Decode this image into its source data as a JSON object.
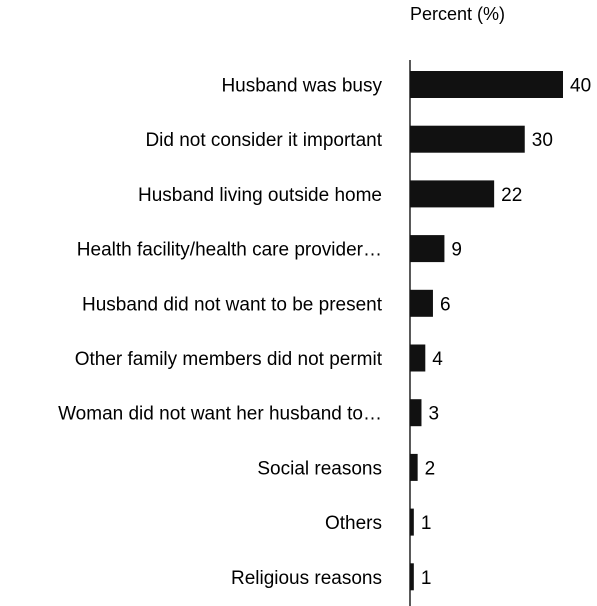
{
  "chart_data": {
    "type": "bar",
    "orientation": "horizontal",
    "title": "Percent (%)",
    "categories": [
      "Husband was busy",
      "Did not consider it important",
      "Husband living outside home",
      "Health facility/health care provider…",
      "Husband did not want to be present",
      "Other family members did not permit",
      "Woman did not want her husband to…",
      "Social reasons",
      "Others",
      "Religious reasons"
    ],
    "values": [
      40,
      30,
      22,
      9,
      6,
      4,
      3,
      2,
      1,
      1
    ],
    "xlim": [
      0,
      40
    ],
    "grid": false,
    "bar_color": "#111111"
  }
}
